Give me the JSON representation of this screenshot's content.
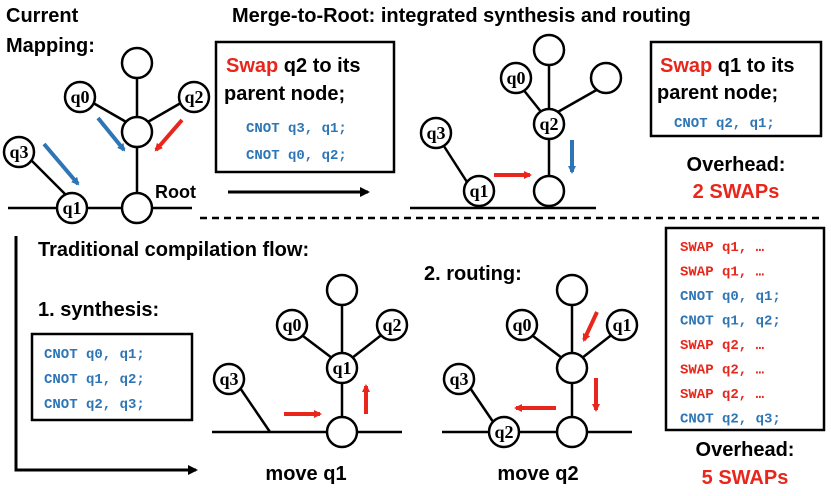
{
  "colors": {
    "red": "#e8261c",
    "blue": "#2e75b6",
    "black": "#000000"
  },
  "titles": {
    "current_mapping_1": "Current",
    "current_mapping_2": "Mapping:",
    "merge_to_root": "Merge-to-Root: integrated synthesis and routing",
    "traditional": "Traditional compilation flow:",
    "synthesis": "1. synthesis:",
    "routing": "2. routing:",
    "root": "Root",
    "move_q1": "move q1",
    "move_q2": "move q2"
  },
  "nodes": {
    "q0": "q0",
    "q1": "q1",
    "q2": "q2",
    "q3": "q3"
  },
  "box_swap_q2": {
    "swap": "Swap",
    "rest1": " q2 to its",
    "line2": "parent node;",
    "code": [
      "CNOT q3, q1;",
      "CNOT q0, q2;"
    ]
  },
  "box_swap_q1": {
    "swap": "Swap",
    "rest1": " q1 to its",
    "line2": "parent node;",
    "code": [
      "CNOT q2, q1;"
    ]
  },
  "overhead_top": {
    "label": "Overhead:",
    "value": "2 SWAPs"
  },
  "synthesis_code": [
    "CNOT q0, q1;",
    "CNOT q1, q2;",
    "CNOT q2, q3;"
  ],
  "routing_code": [
    {
      "text": "SWAP q1, …",
      "kind": "swap"
    },
    {
      "text": "SWAP q1, …",
      "kind": "swap"
    },
    {
      "text": "CNOT q0, q1;",
      "kind": "cnot"
    },
    {
      "text": "CNOT q1, q2;",
      "kind": "cnot"
    },
    {
      "text": "SWAP q2, …",
      "kind": "swap"
    },
    {
      "text": "SWAP q2, …",
      "kind": "swap"
    },
    {
      "text": "SWAP q2, …",
      "kind": "swap"
    },
    {
      "text": "CNOT q2, q3;",
      "kind": "cnot"
    }
  ],
  "overhead_bottom": {
    "label": "Overhead:",
    "value": "5 SWAPs"
  }
}
